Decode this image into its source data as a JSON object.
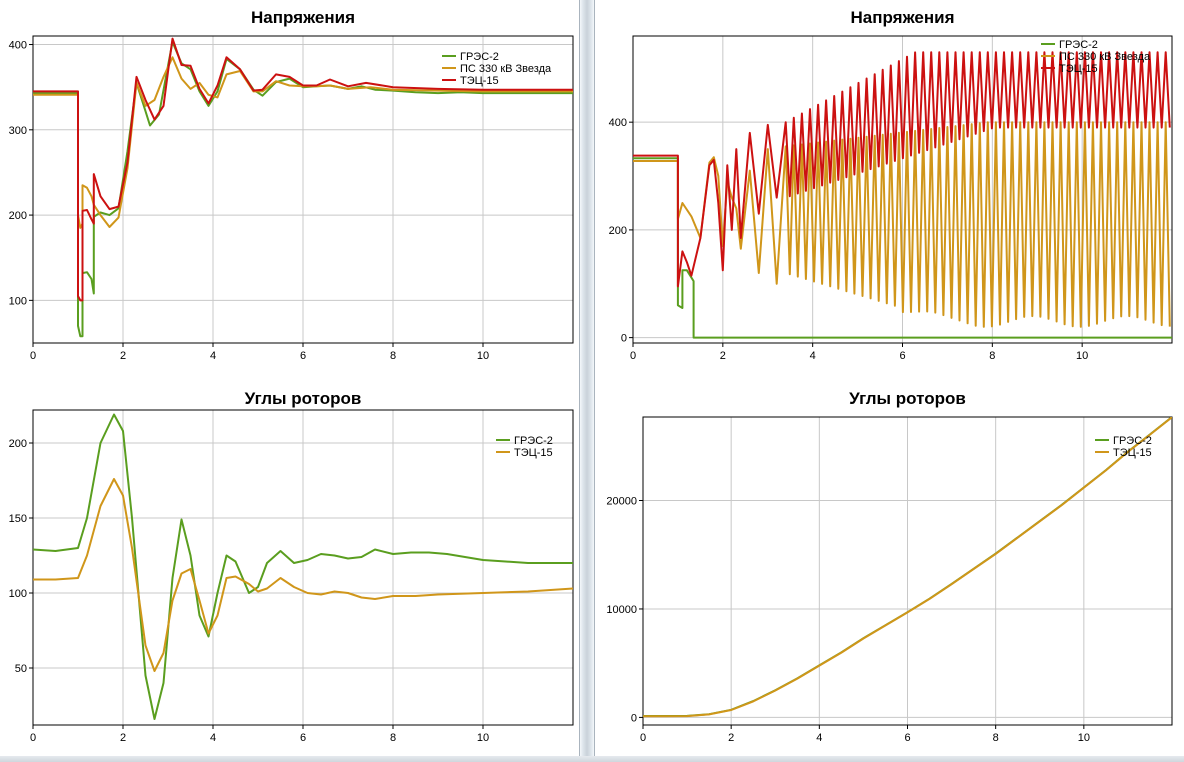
{
  "chart_data": [
    {
      "id": "tl",
      "type": "line",
      "title": "Напряжения",
      "xlim": [
        0,
        12
      ],
      "ylim": [
        50,
        410
      ],
      "xticks": [
        0,
        2,
        4,
        6,
        8,
        10
      ],
      "yticks": [
        100,
        200,
        300,
        400
      ],
      "grid": true,
      "legend_position": "top-right",
      "series": [
        {
          "name": "ГРЭС-2",
          "color": "#5a9e1f",
          "x": [
            0,
            1.0,
            1.0,
            1.05,
            1.1,
            1.1,
            1.2,
            1.3,
            1.35,
            1.35,
            1.5,
            1.7,
            1.9,
            2.1,
            2.3,
            2.45,
            2.6,
            2.8,
            3.0,
            3.1,
            3.3,
            3.5,
            3.7,
            3.9,
            4.1,
            4.3,
            4.6,
            4.9,
            5.1,
            5.4,
            5.7,
            6.0,
            6.3,
            6.6,
            7.0,
            7.3,
            7.6,
            8.0,
            8.5,
            9.0,
            9.5,
            10.0,
            10.5,
            11.0,
            11.5,
            12.0
          ],
          "y": [
            343,
            343,
            70,
            58,
            58,
            132,
            133,
            125,
            108,
            198,
            203,
            200,
            208,
            275,
            355,
            330,
            305,
            318,
            375,
            403,
            378,
            371,
            345,
            328,
            345,
            383,
            371,
            347,
            340,
            356,
            360,
            350,
            351,
            352,
            348,
            351,
            347,
            346,
            344,
            343,
            344,
            343,
            343,
            343,
            343,
            343
          ]
        },
        {
          "name": "ПС 330 кВ Звезда",
          "color": "#d0961a",
          "x": [
            0,
            1.0,
            1.0,
            1.05,
            1.1,
            1.1,
            1.2,
            1.3,
            1.35,
            1.5,
            1.7,
            1.9,
            2.1,
            2.3,
            2.5,
            2.7,
            2.9,
            3.1,
            3.3,
            3.5,
            3.7,
            3.9,
            4.1,
            4.3,
            4.6,
            4.9,
            5.1,
            5.4,
            5.7,
            6.0,
            6.3,
            6.6,
            7.0,
            7.5,
            8.0,
            9.0,
            10.0,
            11.0,
            12.0
          ],
          "y": [
            341,
            341,
            200,
            185,
            190,
            235,
            232,
            222,
            212,
            200,
            186,
            197,
            255,
            355,
            328,
            335,
            362,
            385,
            360,
            348,
            355,
            341,
            338,
            365,
            369,
            345,
            345,
            357,
            352,
            351,
            351,
            352,
            348,
            350,
            347,
            346,
            345,
            345,
            345
          ]
        },
        {
          "name": "ТЭЦ-15",
          "color": "#cc1111",
          "x": [
            0,
            1.0,
            1.0,
            1.05,
            1.1,
            1.1,
            1.2,
            1.3,
            1.35,
            1.35,
            1.5,
            1.7,
            1.9,
            2.1,
            2.3,
            2.5,
            2.7,
            2.9,
            3.0,
            3.1,
            3.3,
            3.5,
            3.7,
            3.9,
            4.1,
            4.3,
            4.6,
            4.9,
            5.1,
            5.4,
            5.7,
            6.0,
            6.3,
            6.6,
            7.0,
            7.4,
            8.0,
            9.0,
            10.0,
            11.0,
            12.0
          ],
          "y": [
            345,
            345,
            105,
            100,
            100,
            205,
            206,
            195,
            190,
            248,
            222,
            207,
            210,
            262,
            362,
            335,
            312,
            328,
            368,
            407,
            376,
            375,
            348,
            331,
            352,
            385,
            371,
            346,
            347,
            365,
            362,
            352,
            352,
            359,
            351,
            355,
            350,
            348,
            347,
            347,
            347
          ]
        }
      ]
    },
    {
      "id": "tr",
      "type": "line",
      "title": "Напряжения",
      "xlim": [
        0,
        12
      ],
      "ylim": [
        -10,
        560
      ],
      "xticks": [
        0,
        2,
        4,
        6,
        8,
        10
      ],
      "yticks": [
        0,
        200,
        400
      ],
      "grid": true,
      "legend_position": "top-right",
      "series": [
        {
          "name": "ГРЭС-2",
          "color": "#5a9e1f",
          "x": [
            0,
            1.0,
            1.0,
            1.1,
            1.1,
            1.2,
            1.35,
            1.35,
            1.4,
            12.0
          ],
          "y": [
            333,
            333,
            60,
            55,
            125,
            125,
            105,
            0,
            0,
            0
          ]
        },
        {
          "name": "ПС 330 кВ Звезда",
          "color": "#d0961a",
          "x": [
            0,
            1.0,
            1.0,
            1.1,
            1.3,
            1.5,
            1.7,
            1.8,
            1.9,
            2.0,
            2.1,
            2.2,
            2.3,
            2.4,
            2.6,
            2.8,
            3.0,
            3.2
          ],
          "y": [
            328,
            328,
            220,
            250,
            225,
            185,
            325,
            335,
            300,
            170,
            290,
            260,
            240,
            165,
            310,
            120,
            350,
            100
          ]
        },
        {
          "name": "ТЭЦ-15",
          "color": "#cc1111",
          "x": [
            0,
            1.0,
            1.0,
            1.1,
            1.2,
            1.3,
            1.5,
            1.7,
            1.8,
            1.9,
            2.0,
            2.1,
            2.2,
            2.3,
            2.4,
            2.6,
            2.8,
            3.0,
            3.2
          ],
          "y": [
            338,
            338,
            95,
            160,
            140,
            115,
            185,
            320,
            330,
            250,
            125,
            320,
            200,
            350,
            185,
            380,
            230,
            395,
            260
          ]
        }
      ]
    },
    {
      "id": "bl",
      "type": "line",
      "title": "Углы роторов",
      "xlim": [
        0,
        12
      ],
      "ylim": [
        12,
        222
      ],
      "xticks": [
        0,
        2,
        4,
        6,
        8,
        10
      ],
      "yticks": [
        50,
        100,
        150,
        200
      ],
      "grid": true,
      "legend_position": "top-right",
      "series": [
        {
          "name": "ГРЭС-2",
          "color": "#5a9e1f",
          "x": [
            0,
            0.5,
            1.0,
            1.2,
            1.5,
            1.8,
            2.0,
            2.2,
            2.5,
            2.7,
            2.9,
            3.1,
            3.3,
            3.5,
            3.7,
            3.9,
            4.1,
            4.3,
            4.5,
            4.8,
            5.0,
            5.2,
            5.5,
            5.8,
            6.1,
            6.4,
            6.7,
            7.0,
            7.3,
            7.6,
            8.0,
            8.4,
            8.8,
            9.2,
            9.6,
            10.0,
            10.5,
            11.0,
            11.5,
            12.0
          ],
          "y": [
            129,
            128,
            130,
            150,
            200,
            219,
            208,
            150,
            45,
            16,
            40,
            110,
            149,
            125,
            85,
            71,
            100,
            125,
            121,
            100,
            104,
            120,
            128,
            120,
            122,
            126,
            125,
            123,
            124,
            129,
            126,
            127,
            127,
            126,
            124,
            122,
            121,
            120,
            120,
            120
          ]
        },
        {
          "name": "ТЭЦ-15",
          "color": "#d0961a",
          "x": [
            0,
            0.5,
            1.0,
            1.2,
            1.5,
            1.8,
            2.0,
            2.2,
            2.5,
            2.7,
            2.9,
            3.1,
            3.3,
            3.5,
            3.7,
            3.9,
            4.1,
            4.3,
            4.5,
            4.8,
            5.0,
            5.2,
            5.5,
            5.8,
            6.1,
            6.4,
            6.7,
            7.0,
            7.3,
            7.6,
            8.0,
            8.5,
            9.0,
            10.0,
            11.0,
            12.0
          ],
          "y": [
            109,
            109,
            110,
            125,
            158,
            176,
            165,
            130,
            65,
            48,
            60,
            95,
            113,
            116,
            95,
            73,
            85,
            110,
            111,
            106,
            101,
            103,
            110,
            104,
            100,
            99,
            101,
            100,
            97,
            96,
            98,
            98,
            99,
            100,
            101,
            103
          ]
        }
      ]
    },
    {
      "id": "br",
      "type": "line",
      "title": "Углы роторов",
      "xlim": [
        0,
        12
      ],
      "ylim": [
        -700,
        27700
      ],
      "xticks": [
        0,
        2,
        4,
        6,
        8,
        10
      ],
      "yticks": [
        0,
        10000,
        20000
      ],
      "grid": true,
      "legend_position": "top-right",
      "series": [
        {
          "name": "ГРЭС-2",
          "color": "#5a9e1f",
          "x": [
            0,
            0.5,
            1.0,
            1.5,
            2.0,
            2.5,
            3.0,
            3.5,
            4.0,
            4.5,
            5.0,
            5.5,
            6.0,
            6.5,
            7.0,
            7.5,
            8.0,
            8.5,
            9.0,
            9.5,
            10.0,
            10.5,
            11.0,
            11.5,
            12.0
          ],
          "y": [
            130,
            130,
            140,
            300,
            700,
            1500,
            2500,
            3600,
            4800,
            6000,
            7300,
            8500,
            9700,
            10950,
            12300,
            13700,
            15100,
            16600,
            18100,
            19600,
            21200,
            22800,
            24500,
            26100,
            27700
          ]
        },
        {
          "name": "ТЭЦ-15",
          "color": "#d0961a",
          "x": [
            0,
            0.5,
            1.0,
            1.5,
            2.0,
            2.5,
            3.0,
            3.5,
            4.0,
            4.5,
            5.0,
            5.5,
            6.0,
            6.5,
            7.0,
            7.5,
            8.0,
            8.5,
            9.0,
            9.5,
            10.0,
            10.5,
            11.0,
            11.5,
            12.0
          ],
          "y": [
            110,
            110,
            120,
            280,
            680,
            1480,
            2480,
            3580,
            4780,
            5980,
            7280,
            8480,
            9680,
            10930,
            12280,
            13680,
            15080,
            16580,
            18080,
            19580,
            21180,
            22780,
            24480,
            26080,
            27680
          ]
        }
      ]
    }
  ]
}
